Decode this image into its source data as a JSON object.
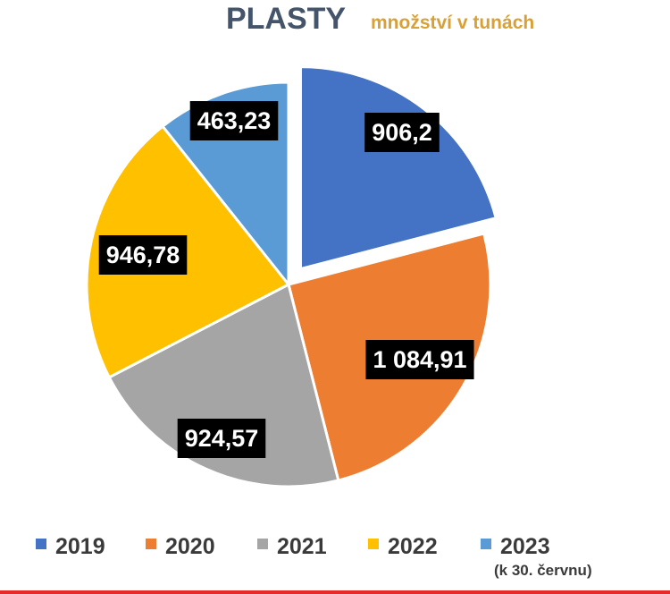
{
  "chart_data": {
    "type": "pie",
    "title": "PLASTY",
    "subtitle": "množství v tunách",
    "categories": [
      "2019",
      "2020",
      "2021",
      "2022",
      "2023"
    ],
    "values": [
      906.2,
      1084.91,
      924.57,
      946.78,
      463.23
    ],
    "labels": [
      "906,2",
      "1 084,91",
      "924,57",
      "946,78",
      "463,23"
    ],
    "colors": [
      "#4472C4",
      "#ED7D31",
      "#A5A5A5",
      "#FFC000",
      "#5B9BD5"
    ],
    "exploded_slice": "2019",
    "legend_position": "bottom",
    "legend_note": "(k 30. červnu)"
  },
  "style": {
    "title_color": "#44546A",
    "subtitle_color": "#D9A036",
    "label_bg": "#000000",
    "rule_color": "#E32B2B"
  }
}
